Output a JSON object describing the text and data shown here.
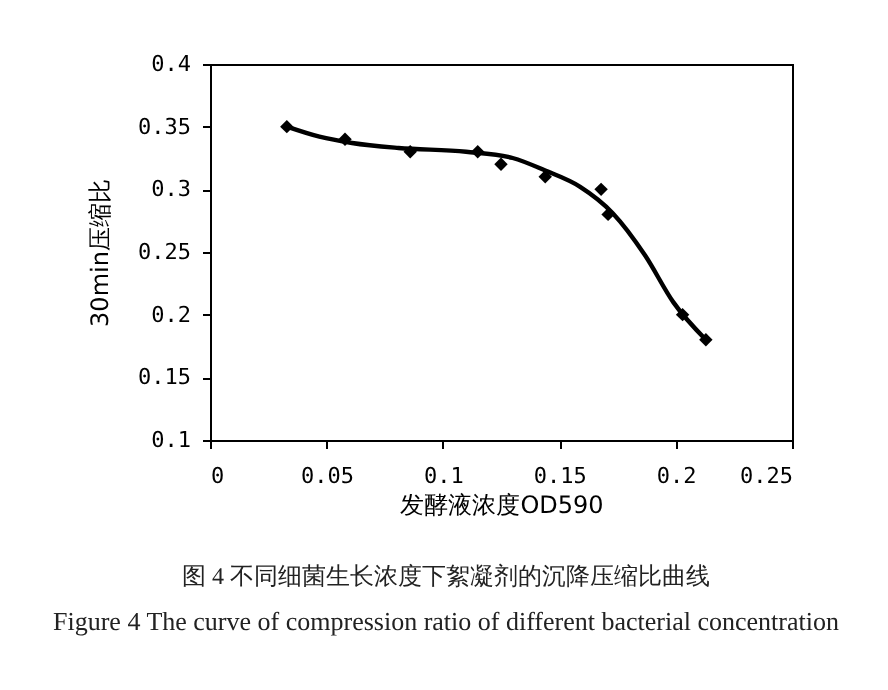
{
  "chart_data": {
    "type": "scatter",
    "xlabel": "发酵液浓度OD590",
    "ylabel": "30min压缩比",
    "annotations": [
      "图 4 不同细菌生长浓度下絮凝剂的沉降压缩比曲线",
      "Figure 4 The curve of compression ratio of different bacterial concentration"
    ],
    "xlim": [
      0,
      0.25
    ],
    "xticks": [
      0,
      0.05,
      0.1,
      0.15,
      0.2,
      0.25
    ],
    "ylim": [
      0.1,
      0.4
    ],
    "yticks": [
      0.1,
      0.15,
      0.2,
      0.25,
      0.3,
      0.35,
      0.4
    ],
    "grid": false,
    "series": [
      {
        "color": "#000000",
        "marker": "diamond",
        "x": [
          0.033,
          0.058,
          0.086,
          0.115,
          0.125,
          0.144,
          0.168,
          0.171,
          0.203,
          0.213
        ],
        "values": [
          0.35,
          0.34,
          0.33,
          0.33,
          0.32,
          0.31,
          0.3,
          0.28,
          0.2,
          0.18
        ]
      },
      {
        "type": "line",
        "color": "#000000",
        "marker": "none",
        "line_style": "solid",
        "x": [
          0.033,
          0.047,
          0.061,
          0.081,
          0.11,
          0.13,
          0.144,
          0.159,
          0.173,
          0.187,
          0.199,
          0.213
        ],
        "values": [
          0.35,
          0.342,
          0.337,
          0.333,
          0.33,
          0.325,
          0.315,
          0.302,
          0.281,
          0.247,
          0.21,
          0.18
        ]
      }
    ]
  }
}
